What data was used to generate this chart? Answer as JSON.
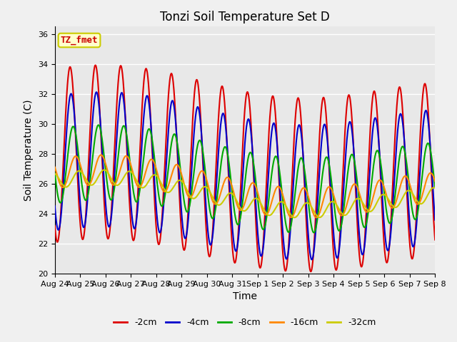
{
  "title": "Tonzi Soil Temperature Set D",
  "xlabel": "Time",
  "ylabel": "Soil Temperature (C)",
  "ylim": [
    20,
    36
  ],
  "xlim": [
    0,
    15
  ],
  "tick_labels": [
    "Aug 24",
    "Aug 25",
    "Aug 26",
    "Aug 27",
    "Aug 28",
    "Aug 29",
    "Aug 30",
    "Aug 31",
    "Sep 1",
    "Sep 2",
    "Sep 3",
    "Sep 4",
    "Sep 5",
    "Sep 6",
    "Sep 7",
    "Sep 8"
  ],
  "annotation_text": "TZ_fmet",
  "annotation_bg": "#ffffcc",
  "annotation_border": "#cccc00",
  "annotation_color": "#cc0000",
  "plot_bg": "#e8e8e8",
  "fig_bg": "#f0f0f0",
  "series": [
    {
      "label": "-2cm",
      "color": "#dd0000",
      "amp": 5.8,
      "phase": 0.0,
      "base": 27.5,
      "lw": 1.5
    },
    {
      "label": "-4cm",
      "color": "#0000cc",
      "amp": 4.5,
      "phase": 0.04,
      "base": 27.0,
      "lw": 1.5
    },
    {
      "label": "-8cm",
      "color": "#00aa00",
      "amp": 2.5,
      "phase": 0.12,
      "base": 26.8,
      "lw": 1.5
    },
    {
      "label": "-16cm",
      "color": "#ff8800",
      "amp": 1.0,
      "phase": 0.22,
      "base": 26.3,
      "lw": 1.5
    },
    {
      "label": "-32cm",
      "color": "#cccc00",
      "amp": 0.5,
      "phase": 0.35,
      "base": 25.8,
      "lw": 1.5
    }
  ],
  "yticks": [
    20,
    22,
    24,
    26,
    28,
    30,
    32,
    34,
    36
  ],
  "grid_color": "#ffffff",
  "legend_fontsize": 9,
  "title_fontsize": 12,
  "axis_fontsize": 10,
  "tick_fontsize": 8
}
